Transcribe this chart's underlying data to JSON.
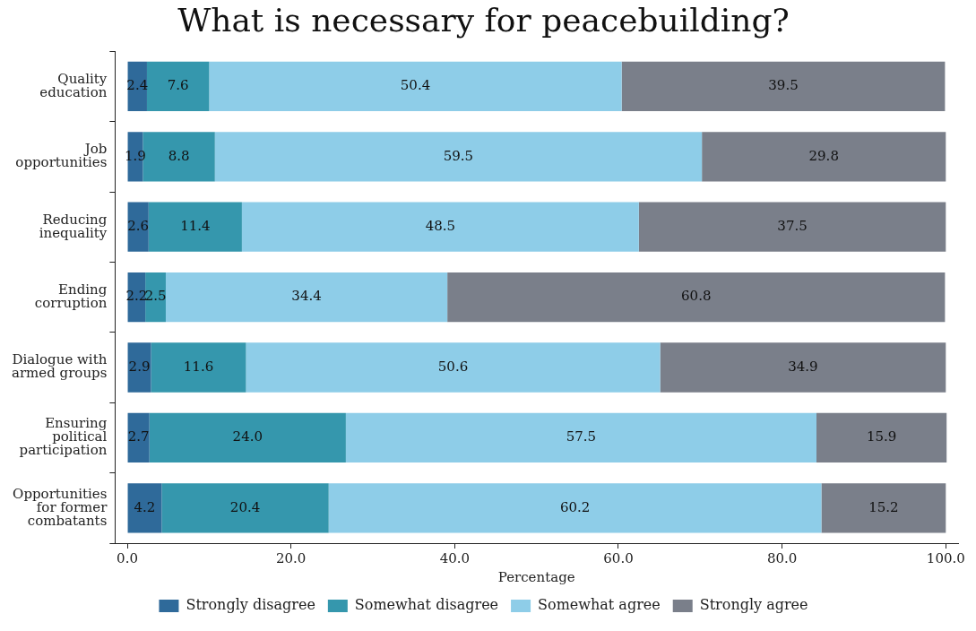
{
  "chart_data": {
    "type": "bar",
    "orientation": "horizontal",
    "stacked": true,
    "title": "What is necessary for peacebuilding?",
    "xlabel": "Percentage",
    "categories": [
      "Quality education",
      "Job opportunities",
      "Reducing inequality",
      "Ending corruption",
      "Dialogue with armed groups",
      "Ensuring political participation",
      "Opportunities for former combatants"
    ],
    "series": [
      {
        "name": "Strongly disagree",
        "color": "#2f6a9a",
        "values": [
          2.4,
          1.9,
          2.6,
          2.2,
          2.9,
          2.7,
          4.2
        ],
        "value_labels": [
          "2.4",
          "1.9",
          "2.6",
          "2.2",
          "2.9",
          "2.7",
          "4.2"
        ]
      },
      {
        "name": "Somewhat disagree",
        "color": "#3597ad",
        "values": [
          7.6,
          8.8,
          11.4,
          2.5,
          11.6,
          24.0,
          20.4
        ],
        "value_labels": [
          "7.6",
          "8.8",
          "11.4",
          "2.5",
          "11.6",
          "24.0",
          "20.4"
        ]
      },
      {
        "name": "Somewhat agree",
        "color": "#8ecde8",
        "values": [
          50.4,
          59.5,
          48.5,
          34.4,
          50.6,
          57.5,
          60.2
        ],
        "value_labels": [
          "50.4",
          "59.5",
          "48.5",
          "34.4",
          "50.6",
          "57.5",
          "60.2"
        ]
      },
      {
        "name": "Strongly agree",
        "color": "#7a7f8a",
        "values": [
          39.5,
          29.8,
          37.5,
          60.8,
          34.9,
          15.9,
          15.2
        ],
        "value_labels": [
          "39.5",
          "29.8",
          "37.5",
          "60.8",
          "34.9",
          "15.9",
          "15.2"
        ]
      }
    ],
    "xlim": [
      -1.5,
      101.5
    ],
    "xticks": [
      {
        "value": 0,
        "label": "0.0"
      },
      {
        "value": 20,
        "label": "20.0"
      },
      {
        "value": 40,
        "label": "40.0"
      },
      {
        "value": 60,
        "label": "60.0"
      },
      {
        "value": 80,
        "label": "80.0"
      },
      {
        "value": 100,
        "label": "100.0"
      }
    ],
    "grid": false,
    "legend": "bottom"
  }
}
